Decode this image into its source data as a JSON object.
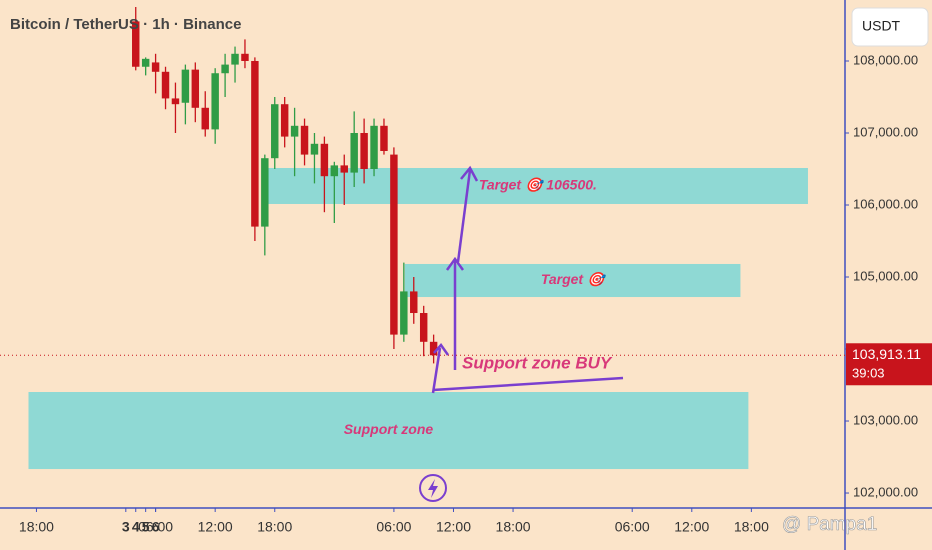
{
  "chart_data": {
    "type": "candlestick",
    "title": "Bitcoin / TetherUS · 1h · Binance",
    "currency": "USDT",
    "up_color": "#2f9c46",
    "down_color": "#c8141c",
    "candles": {
      "x": [
        4,
        5,
        6,
        7,
        8,
        9,
        10,
        11,
        12,
        13,
        14,
        15,
        16,
        17,
        18,
        19,
        20,
        21,
        22,
        23,
        24,
        25,
        26,
        27,
        28,
        29,
        30,
        31,
        32,
        33,
        34
      ],
      "open": [
        108550,
        107920,
        107980,
        107850,
        107480,
        107420,
        107880,
        107350,
        107050,
        107830,
        107950,
        108100,
        108000,
        105700,
        106650,
        107400,
        106950,
        107100,
        106700,
        106850,
        106400,
        106550,
        106450,
        107000,
        106500,
        107100,
        106700,
        104200,
        104800,
        104500,
        104100
      ],
      "high": [
        108750,
        108050,
        108100,
        107920,
        107700,
        107950,
        107980,
        107580,
        107900,
        108100,
        108200,
        108300,
        108050,
        106700,
        107500,
        107500,
        107350,
        107200,
        107000,
        106950,
        106600,
        106700,
        107300,
        107200,
        107200,
        107200,
        106800,
        105200,
        105000,
        104600,
        104200
      ],
      "low": [
        107870,
        107800,
        107550,
        107330,
        107000,
        107120,
        107150,
        106950,
        106850,
        107500,
        107700,
        107900,
        105500,
        105300,
        106500,
        106800,
        106400,
        106550,
        106300,
        105900,
        105750,
        106000,
        106250,
        106300,
        106400,
        106700,
        104000,
        104100,
        104350,
        103900,
        103800
      ],
      "close": [
        107920,
        108030,
        107850,
        107480,
        107400,
        107880,
        107350,
        107050,
        107830,
        107950,
        108100,
        108000,
        105700,
        106650,
        107400,
        106950,
        107100,
        106700,
        106850,
        106400,
        106550,
        106450,
        107000,
        106500,
        107100,
        106750,
        104200,
        104800,
        104500,
        104100,
        103913.11
      ]
    },
    "last_price": 103913.11,
    "last_price_label": "103,913.11",
    "countdown": "39:03",
    "zones": [
      {
        "label": "Target 🎯 106500.",
        "x": [
          17.3,
          71.7
        ],
        "y": [
          106014,
          106514
        ],
        "color": "#8fd9d4"
      },
      {
        "label": "Target 🎯",
        "x": [
          31.1,
          64.9
        ],
        "y": [
          104722,
          105181
        ],
        "color": "#8fd9d4"
      },
      {
        "label": "Support zone",
        "x": [
          -6.8,
          65.7
        ],
        "y": [
          102333,
          103403
        ],
        "color": "#8fd9d4"
      }
    ],
    "annotation": "Support zone BUY",
    "watermark": "@ Pampa1",
    "xlim": [
      -9.67,
      75.43
    ],
    "xticks": [
      {
        "value": -6,
        "label": "18:00"
      },
      3,
      {
        "value": 6,
        "label": "06:00"
      },
      {
        "value": 12,
        "label": "12:00"
      },
      {
        "value": 18,
        "label": "18:00"
      },
      4,
      {
        "value": 30,
        "label": "06:00"
      },
      {
        "value": 36,
        "label": "12:00"
      },
      {
        "value": 42,
        "label": "18:00"
      },
      5,
      {
        "value": 54,
        "label": "06:00"
      },
      {
        "value": 60,
        "label": "12:00"
      },
      {
        "value": 66,
        "label": "18:00"
      },
      6
    ],
    "ylim": [
      101792,
      108847
    ],
    "yticks": [
      {
        "value": 102000,
        "label": "102,000.00"
      },
      {
        "value": 103000,
        "label": "103,000.00"
      },
      {
        "value": 104000,
        "label": "104,000.00"
      },
      {
        "value": 105000,
        "label": "105,000.00"
      },
      {
        "value": 106000,
        "label": "106,000.00"
      },
      {
        "value": 107000,
        "label": "107,000.00"
      },
      {
        "value": 108000,
        "label": "108,000.00"
      }
    ]
  }
}
